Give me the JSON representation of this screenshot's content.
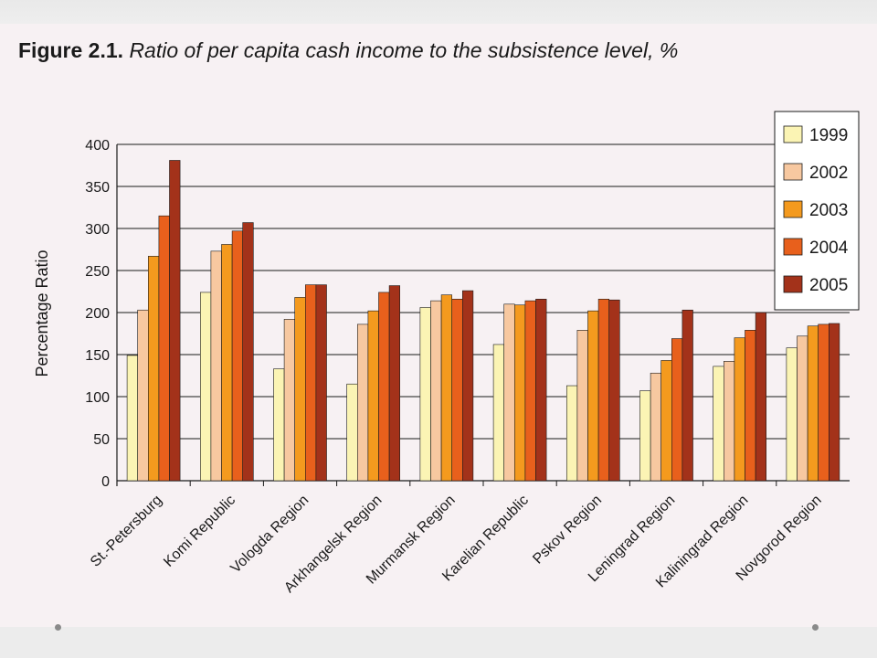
{
  "figure": {
    "label": "Figure 2.1.",
    "caption": "Ratio of per capita cash income to the subsistence level, %"
  },
  "chart_data": {
    "type": "bar",
    "title": "Ratio of per capita cash income to the subsistence level, %",
    "ylabel": "Percentage Ratio",
    "xlabel": "",
    "ylim": [
      0,
      400
    ],
    "yticks": [
      0,
      50,
      100,
      150,
      200,
      250,
      300,
      350,
      400
    ],
    "grid": true,
    "legend_position": "top-right",
    "categories": [
      "St.-Petersburg",
      "Komi Republic",
      "Vologda Region",
      "Arkhangelsk Region",
      "Murmansk Region",
      "Karelian Republic",
      "Pskov Region",
      "Leningrad Region",
      "Kaliningrad Region",
      "Novgorod Region"
    ],
    "series": [
      {
        "name": "1999",
        "color": "#fbf4b4",
        "values": [
          149,
          224,
          133,
          115,
          206,
          162,
          113,
          107,
          136,
          158
        ]
      },
      {
        "name": "2002",
        "color": "#f7c8a0",
        "values": [
          203,
          273,
          192,
          186,
          214,
          210,
          179,
          128,
          142,
          172
        ]
      },
      {
        "name": "2003",
        "color": "#f49a1e",
        "values": [
          267,
          281,
          218,
          202,
          221,
          209,
          202,
          143,
          170,
          184
        ]
      },
      {
        "name": "2004",
        "color": "#e8601c",
        "values": [
          315,
          297,
          233,
          224,
          216,
          214,
          216,
          169,
          179,
          186
        ]
      },
      {
        "name": "2005",
        "color": "#a3321a",
        "values": [
          381,
          307,
          233,
          232,
          226,
          216,
          215,
          203,
          200,
          187
        ]
      }
    ]
  }
}
